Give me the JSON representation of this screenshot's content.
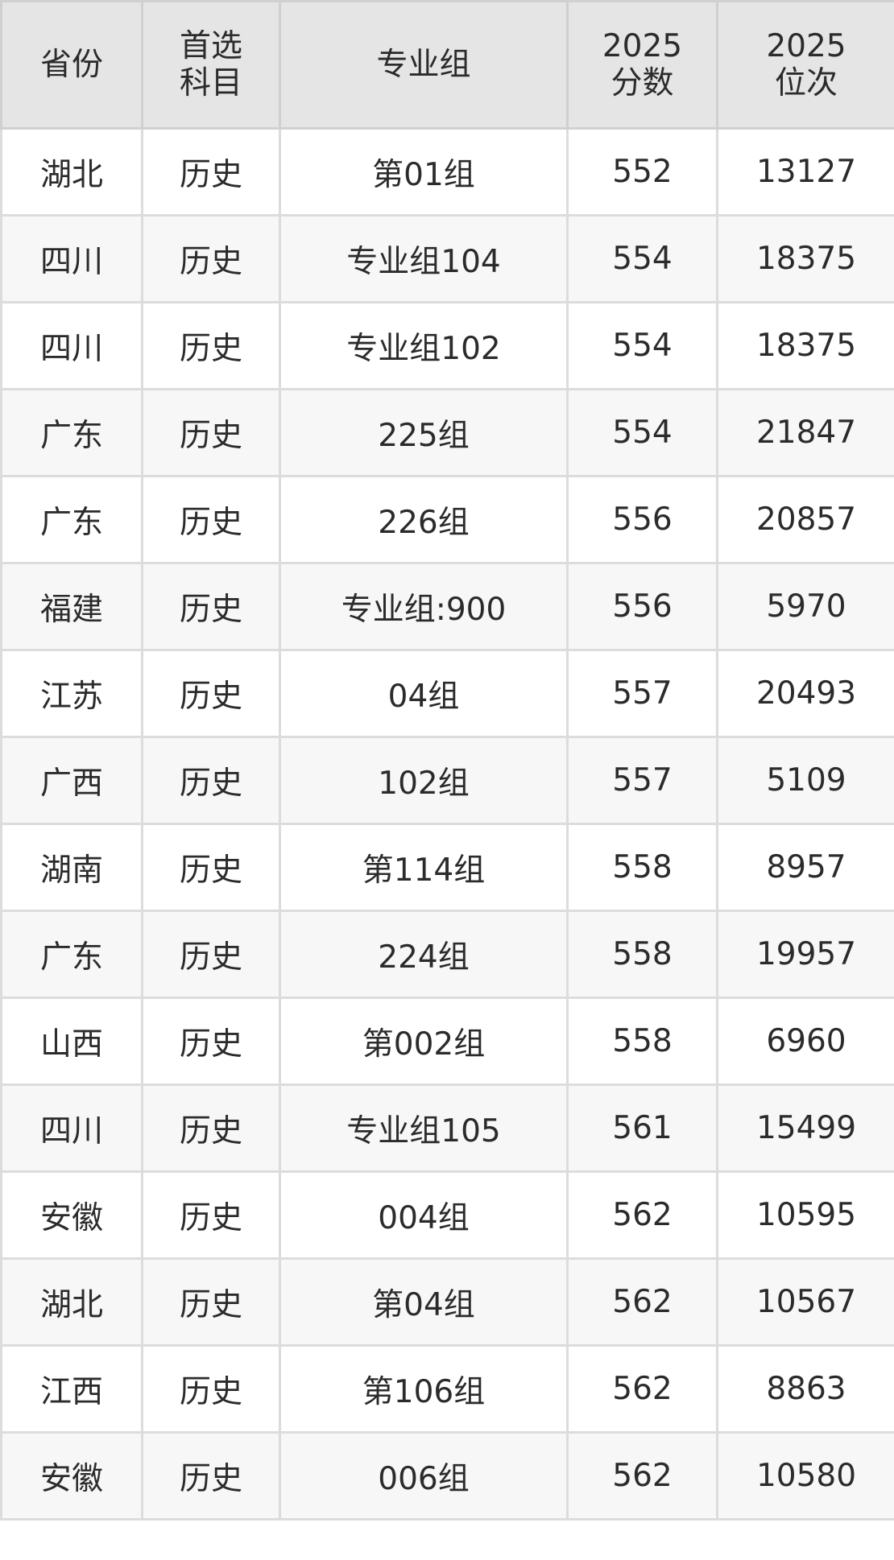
{
  "table": {
    "headers": [
      [
        "省份"
      ],
      [
        "首选",
        "科目"
      ],
      [
        "专业组"
      ],
      [
        "2025",
        "分数"
      ],
      [
        "2025",
        "位次"
      ]
    ],
    "rows": [
      [
        "湖北",
        "历史",
        "第01组",
        "552",
        "13127"
      ],
      [
        "四川",
        "历史",
        "专业组104",
        "554",
        "18375"
      ],
      [
        "四川",
        "历史",
        "专业组102",
        "554",
        "18375"
      ],
      [
        "广东",
        "历史",
        "225组",
        "554",
        "21847"
      ],
      [
        "广东",
        "历史",
        "226组",
        "556",
        "20857"
      ],
      [
        "福建",
        "历史",
        "专业组:900",
        "556",
        "5970"
      ],
      [
        "江苏",
        "历史",
        "04组",
        "557",
        "20493"
      ],
      [
        "广西",
        "历史",
        "102组",
        "557",
        "5109"
      ],
      [
        "湖南",
        "历史",
        "第114组",
        "558",
        "8957"
      ],
      [
        "广东",
        "历史",
        "224组",
        "558",
        "19957"
      ],
      [
        "山西",
        "历史",
        "第002组",
        "558",
        "6960"
      ],
      [
        "四川",
        "历史",
        "专业组105",
        "561",
        "15499"
      ],
      [
        "安徽",
        "历史",
        "004组",
        "562",
        "10595"
      ],
      [
        "湖北",
        "历史",
        "第04组",
        "562",
        "10567"
      ],
      [
        "江西",
        "历史",
        "第106组",
        "562",
        "8863"
      ],
      [
        "安徽",
        "历史",
        "006组",
        "562",
        "10580"
      ]
    ]
  }
}
